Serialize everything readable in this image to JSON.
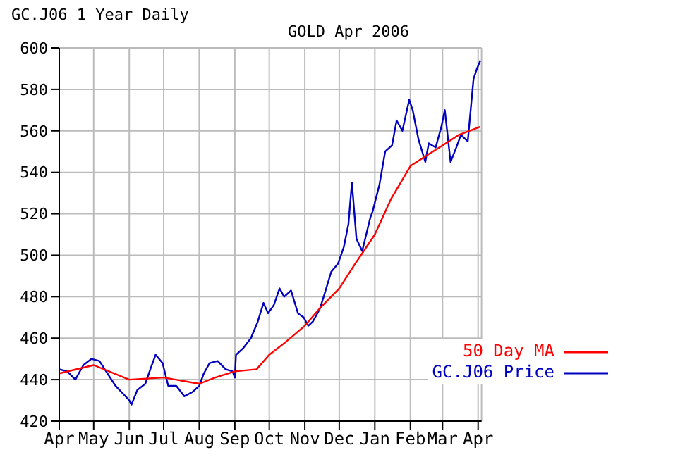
{
  "chart_data": {
    "type": "line",
    "title": "GOLD Apr 2006",
    "subtitle": "GC.J06 1 Year Daily",
    "xlim": [
      "2005-04-01",
      "2006-04-04"
    ],
    "xticks": [
      {
        "value": "2005-04-01",
        "label": "Apr"
      },
      {
        "value": "2005-05-01",
        "label": "May"
      },
      {
        "value": "2005-06-01",
        "label": "Jun"
      },
      {
        "value": "2005-07-01",
        "label": "Jul"
      },
      {
        "value": "2005-08-01",
        "label": "Aug"
      },
      {
        "value": "2005-09-01",
        "label": "Sep"
      },
      {
        "value": "2005-10-01",
        "label": "Oct"
      },
      {
        "value": "2005-11-01",
        "label": "Nov"
      },
      {
        "value": "2005-12-01",
        "label": "Dec"
      },
      {
        "value": "2006-01-01",
        "label": "Jan"
      },
      {
        "value": "2006-02-01",
        "label": "Feb"
      },
      {
        "value": "2006-03-01",
        "label": "Mar"
      },
      {
        "value": "2006-04-01",
        "label": "Apr"
      }
    ],
    "ylim": [
      420,
      600
    ],
    "yticks": [
      420,
      440,
      460,
      480,
      500,
      520,
      540,
      560,
      580,
      600
    ],
    "grid": true,
    "legend": "bottom right",
    "marker": "none",
    "line_style": "solid",
    "series": [
      {
        "name": "GC.J06 Price",
        "color": "#0000c0",
        "x": [
          "2005-04-01",
          "2005-04-08",
          "2005-04-15",
          "2005-04-22",
          "2005-04-29",
          "2005-05-06",
          "2005-05-13",
          "2005-05-20",
          "2005-05-27",
          "2005-06-01",
          "2005-06-03",
          "2005-06-08",
          "2005-06-15",
          "2005-06-20",
          "2005-06-24",
          "2005-06-30",
          "2005-07-05",
          "2005-07-12",
          "2005-07-19",
          "2005-07-26",
          "2005-08-01",
          "2005-08-05",
          "2005-08-10",
          "2005-08-17",
          "2005-08-24",
          "2005-08-30",
          "2005-09-01",
          "2005-09-02",
          "2005-09-08",
          "2005-09-15",
          "2005-09-21",
          "2005-09-26",
          "2005-09-30",
          "2005-10-05",
          "2005-10-10",
          "2005-10-14",
          "2005-10-20",
          "2005-10-26",
          "2005-10-31",
          "2005-11-04",
          "2005-11-08",
          "2005-11-14",
          "2005-11-18",
          "2005-11-24",
          "2005-11-30",
          "2005-12-05",
          "2005-12-09",
          "2005-12-12",
          "2005-12-16",
          "2005-12-21",
          "2005-12-28",
          "2005-12-30",
          "2006-01-05",
          "2006-01-10",
          "2006-01-16",
          "2006-01-20",
          "2006-01-25",
          "2006-01-31",
          "2006-02-03",
          "2006-02-08",
          "2006-02-14",
          "2006-02-17",
          "2006-02-23",
          "2006-02-28",
          "2006-03-03",
          "2006-03-08",
          "2006-03-13",
          "2006-03-17",
          "2006-03-23",
          "2006-03-28",
          "2006-03-31",
          "2006-04-03"
        ],
        "values": [
          445,
          444,
          440,
          447,
          450,
          449,
          443,
          437,
          433,
          430,
          428,
          435,
          438,
          446,
          452,
          448,
          437,
          437,
          432,
          434,
          437,
          443,
          448,
          449,
          445,
          444,
          441,
          452,
          455,
          460,
          468,
          477,
          472,
          476,
          484,
          480,
          483,
          472,
          470,
          466,
          468,
          474,
          481,
          492,
          496,
          504,
          515,
          535,
          508,
          502,
          518,
          521,
          534,
          550,
          553,
          565,
          560,
          575,
          570,
          556,
          545,
          554,
          552,
          562,
          570,
          545,
          552,
          558,
          555,
          585,
          590,
          594
        ]
      },
      {
        "name": "50 Day MA",
        "color": "#ff0000",
        "x": [
          "2005-04-01",
          "2005-05-01",
          "2005-06-01",
          "2005-07-01",
          "2005-08-01",
          "2005-08-15",
          "2005-09-01",
          "2005-09-20",
          "2005-10-01",
          "2005-10-15",
          "2005-11-01",
          "2005-11-15",
          "2005-12-01",
          "2005-12-15",
          "2006-01-01",
          "2006-01-15",
          "2006-02-01",
          "2006-02-15",
          "2006-03-01",
          "2006-03-15",
          "2006-04-03"
        ],
        "values": [
          443,
          447,
          440,
          441,
          438,
          441,
          444,
          445,
          452,
          458,
          466,
          475,
          484,
          496,
          510,
          527,
          543,
          548,
          553,
          558,
          562
        ]
      }
    ]
  }
}
